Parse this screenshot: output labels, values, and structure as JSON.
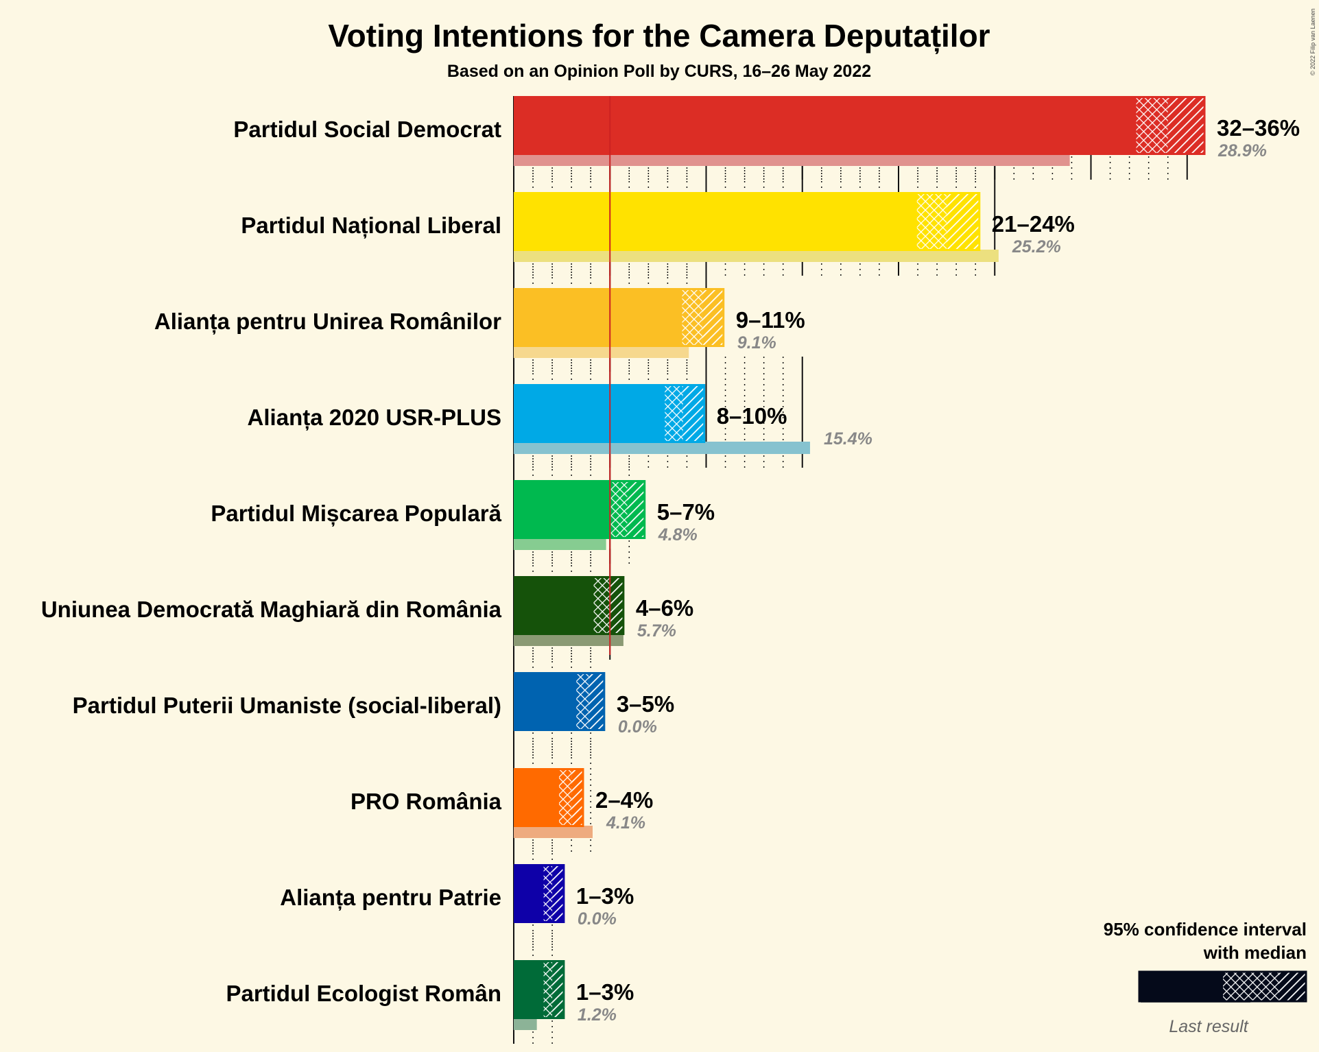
{
  "title": "Voting Intentions for the Camera Deputaților",
  "subtitle": "Based on an Opinion Poll by CURS, 16–26 May 2022",
  "copyright": "© 2022 Filip van Laenen",
  "legend": {
    "line1": "95% confidence interval",
    "line2": "with median",
    "last_result": "Last result"
  },
  "colors": {
    "background": "#fdf8e4",
    "threshold_line": "#cc2222"
  },
  "chart_data": {
    "type": "bar",
    "orientation": "horizontal",
    "unit": "%",
    "threshold": 5,
    "xlim": [
      0,
      36
    ],
    "grid": "dotted every 1%, solid every 5%",
    "series": [
      {
        "name": "95% CI low",
        "values": [
          32.3,
          20.9,
          8.7,
          7.8,
          5.0,
          4.1,
          3.2,
          2.3,
          1.5,
          1.5
        ]
      },
      {
        "name": "Median",
        "values": [
          34.0,
          22.5,
          9.8,
          8.8,
          5.9,
          5.0,
          3.9,
          3.0,
          2.0,
          2.0
        ]
      },
      {
        "name": "95% CI high",
        "values": [
          35.9,
          24.2,
          10.9,
          9.9,
          6.8,
          5.7,
          4.7,
          3.6,
          2.6,
          2.6
        ]
      },
      {
        "name": "Last result",
        "values": [
          28.9,
          25.2,
          9.1,
          15.4,
          4.8,
          5.7,
          0.0,
          4.1,
          0.0,
          1.2
        ]
      }
    ],
    "parties": [
      {
        "name": "Partidul Social Democrat",
        "range": "32–36%",
        "last": "28.9%",
        "color": "#dc2d25",
        "last_color": "#e0928e",
        "low": 32.3,
        "median": 34.0,
        "high": 35.9,
        "last_value": 28.9
      },
      {
        "name": "Partidul Național Liberal",
        "range": "21–24%",
        "last": "25.2%",
        "color": "#ffe200",
        "last_color": "#ece07f",
        "low": 20.9,
        "median": 22.5,
        "high": 24.2,
        "last_value": 25.2
      },
      {
        "name": "Alianța pentru Unirea Românilor",
        "range": "9–11%",
        "last": "9.1%",
        "color": "#fbbf24",
        "last_color": "#f6d88e",
        "low": 8.7,
        "median": 9.8,
        "high": 10.9,
        "last_value": 9.1
      },
      {
        "name": "Alianța 2020 USR-PLUS",
        "range": "8–10%",
        "last": "15.4%",
        "color": "#00a9e6",
        "last_color": "#86c2cf",
        "low": 7.8,
        "median": 8.8,
        "high": 9.9,
        "last_value": 15.4
      },
      {
        "name": "Partidul Mișcarea Populară",
        "range": "5–7%",
        "last": "4.8%",
        "color": "#00b94f",
        "last_color": "#86cc91",
        "low": 5.0,
        "median": 5.9,
        "high": 6.8,
        "last_value": 4.8
      },
      {
        "name": "Uniunea Democrată Maghiară din România",
        "range": "4–6%",
        "last": "5.7%",
        "color": "#15520a",
        "last_color": "#8b9a74",
        "low": 4.1,
        "median": 5.0,
        "high": 5.7,
        "last_value": 5.7
      },
      {
        "name": "Partidul Puterii Umaniste (social-liberal)",
        "range": "3–5%",
        "last": "0.0%",
        "color": "#0063b0",
        "last_color": "#86aed0",
        "low": 3.2,
        "median": 3.9,
        "high": 4.7,
        "last_value": 0.0
      },
      {
        "name": "PRO România",
        "range": "2–4%",
        "last": "4.1%",
        "color": "#ff6a00",
        "last_color": "#eeab7f",
        "low": 2.3,
        "median": 3.0,
        "high": 3.6,
        "last_value": 4.1
      },
      {
        "name": "Alianța pentru Patrie",
        "range": "1–3%",
        "last": "0.0%",
        "color": "#0e00a8",
        "last_color": "#8a86c4",
        "low": 1.5,
        "median": 2.0,
        "high": 2.6,
        "last_value": 0.0
      },
      {
        "name": "Partidul Ecologist Român",
        "range": "1–3%",
        "last": "1.2%",
        "color": "#006b38",
        "last_color": "#8cb397",
        "low": 1.5,
        "median": 2.0,
        "high": 2.6,
        "last_value": 1.2
      }
    ]
  }
}
